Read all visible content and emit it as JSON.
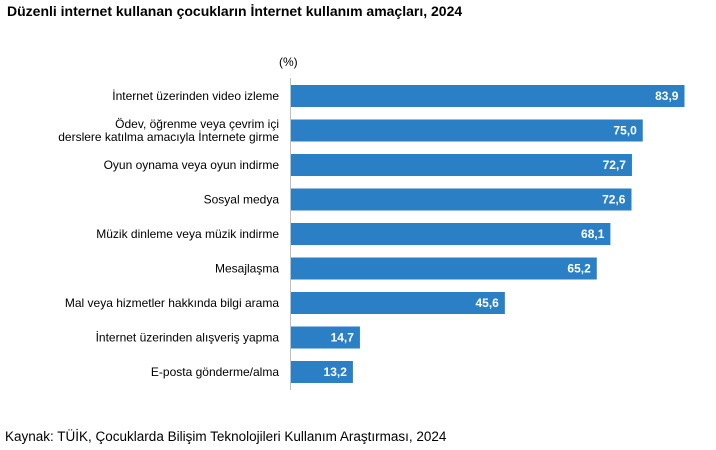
{
  "chart_data": {
    "type": "bar",
    "orientation": "horizontal",
    "title": "Düzenli internet kullanan çocukların İnternet kullanım amaçları, 2024",
    "unit_label": "(%)",
    "categories": [
      [
        "İnternet üzerinden video izleme"
      ],
      [
        "Ödev, öğrenme veya çevrim içi",
        "derslere katılma amacıyla İnternete girme"
      ],
      [
        "Oyun oynama veya oyun indirme"
      ],
      [
        "Sosyal medya"
      ],
      [
        "Müzik dinleme veya müzik indirme"
      ],
      [
        "Mesajlaşma"
      ],
      [
        "Mal veya hizmetler hakkında bilgi arama"
      ],
      [
        "İnternet üzerinden alışveriş yapma"
      ],
      [
        "E-posta gönderme/alma"
      ]
    ],
    "values": [
      83.9,
      75.0,
      72.7,
      72.6,
      68.1,
      65.2,
      45.6,
      14.7,
      13.2
    ],
    "value_labels": [
      "83,9",
      "75,0",
      "72,7",
      "72,6",
      "68,1",
      "65,2",
      "45,6",
      "14,7",
      "13,2"
    ],
    "xlim": [
      0,
      100
    ],
    "bar_color": "#2a7fc5",
    "grid": false,
    "legend": "none",
    "source": "Kaynak: TÜİK, Çocuklarda Bilişim Teknolojileri Kullanım Araştırması, 2024"
  }
}
